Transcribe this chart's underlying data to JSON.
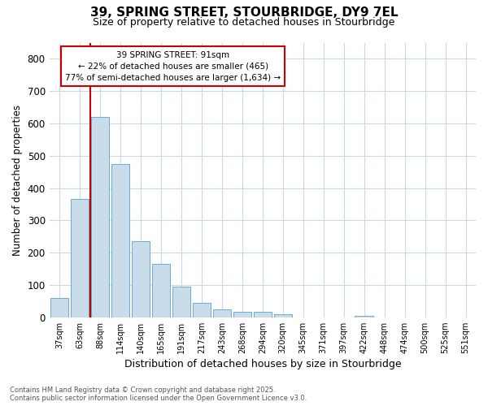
{
  "title_line1": "39, SPRING STREET, STOURBRIDGE, DY9 7EL",
  "title_line2": "Size of property relative to detached houses in Stourbridge",
  "xlabel": "Distribution of detached houses by size in Stourbridge",
  "ylabel": "Number of detached properties",
  "bar_labels": [
    "37sqm",
    "63sqm",
    "88sqm",
    "114sqm",
    "140sqm",
    "165sqm",
    "191sqm",
    "217sqm",
    "243sqm",
    "268sqm",
    "294sqm",
    "320sqm",
    "345sqm",
    "371sqm",
    "397sqm",
    "422sqm",
    "448sqm",
    "474sqm",
    "500sqm",
    "525sqm",
    "551sqm"
  ],
  "bar_values": [
    60,
    365,
    620,
    475,
    235,
    165,
    95,
    45,
    25,
    18,
    18,
    10,
    0,
    0,
    0,
    5,
    0,
    0,
    0,
    0,
    0
  ],
  "bar_color": "#c9dce9",
  "bar_edge_color": "#6aaad4",
  "vline_color": "#cc0000",
  "vline_x_idx": 2,
  "annotation_text": "39 SPRING STREET: 91sqm\n← 22% of detached houses are smaller (465)\n77% of semi-detached houses are larger (1,634) →",
  "annotation_box_facecolor": "white",
  "annotation_box_edgecolor": "#cc0000",
  "ylim": [
    0,
    850
  ],
  "yticks": [
    0,
    100,
    200,
    300,
    400,
    500,
    600,
    700,
    800
  ],
  "grid_color": "#c8d8e8",
  "bg_color": "#ffffff",
  "footer_line1": "Contains HM Land Registry data © Crown copyright and database right 2025.",
  "footer_line2": "Contains public sector information licensed under the Open Government Licence v3.0."
}
